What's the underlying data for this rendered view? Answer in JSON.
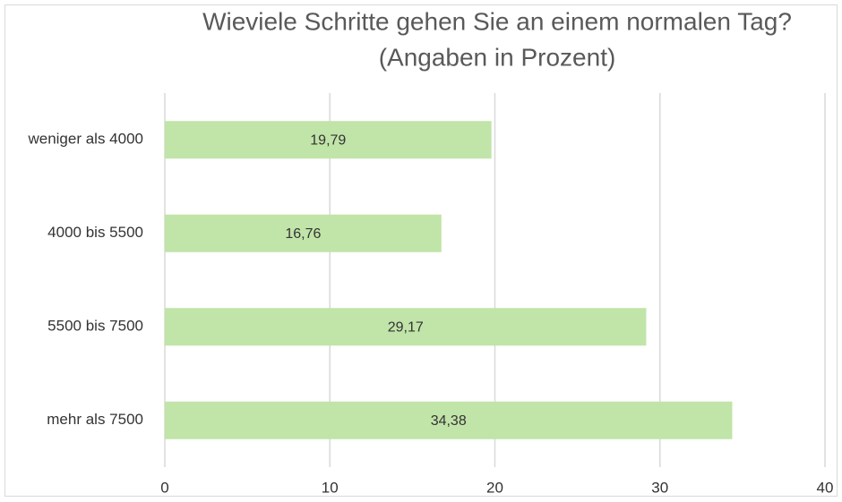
{
  "chart_data": {
    "type": "hbar",
    "title": "Wieviele Schritte gehen Sie an einem normalen Tag?",
    "subtitle": "(Angaben in Prozent)",
    "categories": [
      "weniger als 4000",
      "4000 bis 5500",
      "5500 bis 7500",
      "mehr als 7500"
    ],
    "values": [
      19.79,
      16.76,
      29.17,
      34.38
    ],
    "value_labels": [
      "19,79",
      "16,76",
      "29,17",
      "34,38"
    ],
    "color": "#c1e4a9",
    "xlim": [
      0,
      40
    ],
    "xticks": [
      0,
      10,
      20,
      30,
      40
    ],
    "grid": true
  }
}
